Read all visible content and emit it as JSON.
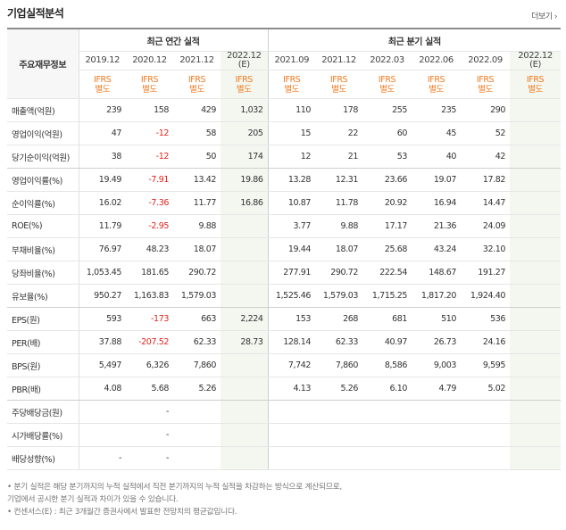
{
  "title": "기업실적분석",
  "more": "더보기",
  "row_header": "주요재무정보",
  "groups": {
    "annual": "최근 연간 실적",
    "quarterly": "최근 분기 실적"
  },
  "periods": [
    "2019.12",
    "2020.12",
    "2021.12",
    "2022.12\n(E)",
    "2021.09",
    "2021.12",
    "2022.03",
    "2022.06",
    "2022.09",
    "2022.12\n(E)"
  ],
  "ifrs": [
    "IFRS\n별도",
    "IFRS\n별도",
    "IFRS\n별도",
    "IFRS\n별도",
    "IFRS\n별도",
    "IFRS\n별도",
    "IFRS\n별도",
    "IFRS\n별도",
    "IFRS\n별도",
    "IFRS\n별도"
  ],
  "rows": [
    {
      "label": "매출액(억원)",
      "values": [
        "239",
        "158",
        "429",
        "1,032",
        "110",
        "178",
        "255",
        "235",
        "290",
        ""
      ]
    },
    {
      "label": "영업이익(억원)",
      "values": [
        "47",
        "-12",
        "58",
        "205",
        "15",
        "22",
        "60",
        "45",
        "52",
        ""
      ]
    },
    {
      "label": "당기순이익(억원)",
      "values": [
        "38",
        "-12",
        "50",
        "174",
        "12",
        "21",
        "53",
        "40",
        "42",
        ""
      ]
    },
    {
      "label": "영업이익률(%)",
      "values": [
        "19.49",
        "-7.91",
        "13.42",
        "19.86",
        "13.28",
        "12.31",
        "23.66",
        "19.07",
        "17.82",
        ""
      ]
    },
    {
      "label": "순이익률(%)",
      "values": [
        "16.02",
        "-7.36",
        "11.77",
        "16.86",
        "10.87",
        "11.78",
        "20.92",
        "16.94",
        "14.47",
        ""
      ]
    },
    {
      "label": "ROE(%)",
      "values": [
        "11.79",
        "-2.95",
        "9.88",
        "",
        "3.77",
        "9.88",
        "17.17",
        "21.36",
        "24.09",
        ""
      ]
    },
    {
      "label": "부채비율(%)",
      "values": [
        "76.97",
        "48.23",
        "18.07",
        "",
        "19.44",
        "18.07",
        "25.68",
        "43.24",
        "32.10",
        ""
      ]
    },
    {
      "label": "당좌비율(%)",
      "values": [
        "1,053.45",
        "181.65",
        "290.72",
        "",
        "277.91",
        "290.72",
        "222.54",
        "148.67",
        "191.27",
        ""
      ]
    },
    {
      "label": "유보율(%)",
      "values": [
        "950.27",
        "1,163.83",
        "1,579.03",
        "",
        "1,525.46",
        "1,579.03",
        "1,715.25",
        "1,817.20",
        "1,924.40",
        ""
      ]
    },
    {
      "label": "EPS(원)",
      "values": [
        "593",
        "-173",
        "663",
        "2,224",
        "153",
        "268",
        "681",
        "510",
        "536",
        ""
      ]
    },
    {
      "label": "PER(배)",
      "values": [
        "37.88",
        "-207.52",
        "62.33",
        "28.73",
        "128.14",
        "62.33",
        "40.97",
        "26.73",
        "24.16",
        ""
      ]
    },
    {
      "label": "BPS(원)",
      "values": [
        "5,497",
        "6,326",
        "7,860",
        "",
        "7,742",
        "7,860",
        "8,586",
        "9,003",
        "9,595",
        ""
      ]
    },
    {
      "label": "PBR(배)",
      "values": [
        "4.08",
        "5.68",
        "5.26",
        "",
        "4.13",
        "5.26",
        "6.10",
        "4.79",
        "5.02",
        ""
      ]
    },
    {
      "label": "주당배당금(원)",
      "values": [
        "",
        "-",
        "",
        "",
        "",
        "",
        "",
        "",
        "",
        ""
      ]
    },
    {
      "label": "시가배당률(%)",
      "values": [
        "",
        "-",
        "",
        "",
        "",
        "",
        "",
        "",
        "",
        ""
      ]
    },
    {
      "label": "배당성향(%)",
      "values": [
        "-",
        "-",
        "",
        "",
        "",
        "",
        "",
        "",
        "",
        ""
      ]
    }
  ],
  "notes": [
    "• 분기 실적은 해당 분기까지의 누적 실적에서 직전 분기까지의 누적 실적을 차감하는 방식으로 계산되므로,",
    "  기업에서 공시한 분기 실적과 차이가 있을 수 있습니다.",
    "• 컨센서스(E) : 최근 3개월간 증권사에서 발표한 전망치의 평균값입니다."
  ]
}
